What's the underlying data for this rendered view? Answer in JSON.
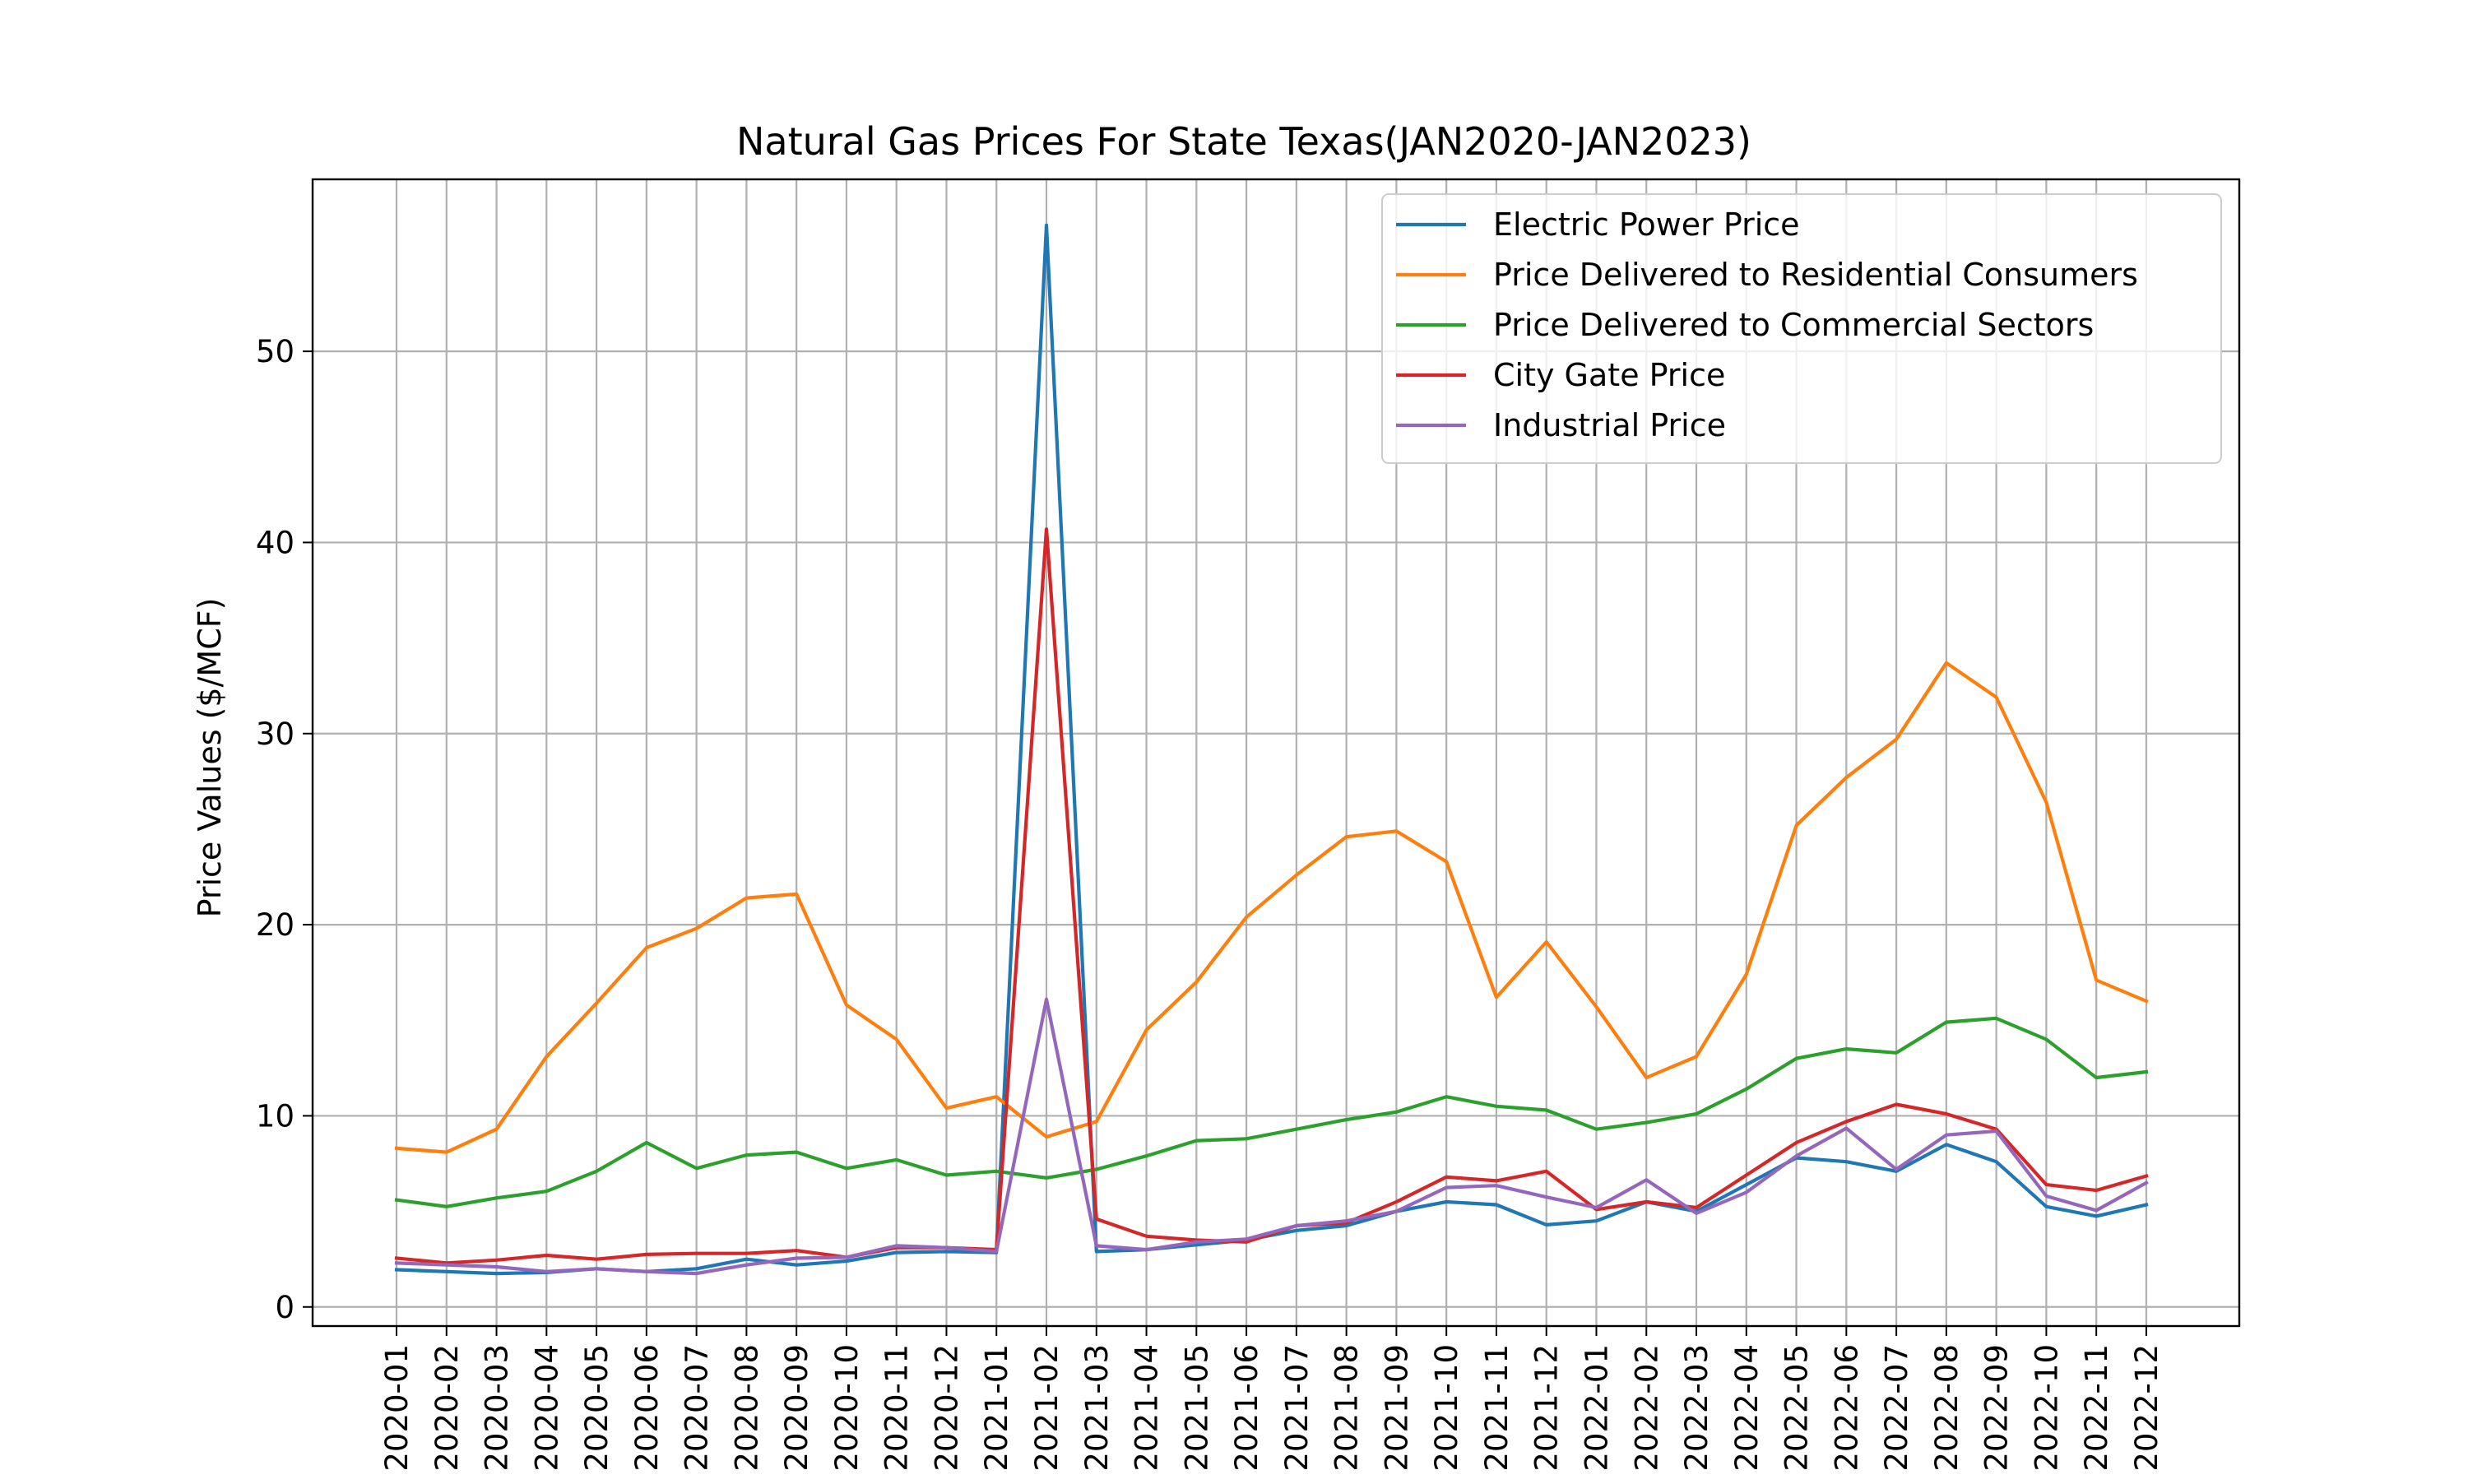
{
  "chart_data": {
    "type": "line",
    "title": "Natural Gas Prices For State Texas(JAN2020-JAN2023)",
    "xlabel": "",
    "ylabel": "Price Values ($/MCF)",
    "ylim": [
      -1,
      59
    ],
    "yticks": [
      0,
      10,
      20,
      30,
      40,
      50
    ],
    "grid": true,
    "legend_position": "top-right",
    "x": [
      "2020-01",
      "2020-02",
      "2020-03",
      "2020-04",
      "2020-05",
      "2020-06",
      "2020-07",
      "2020-08",
      "2020-09",
      "2020-10",
      "2020-11",
      "2020-12",
      "2021-01",
      "2021-02",
      "2021-03",
      "2021-04",
      "2021-05",
      "2021-06",
      "2021-07",
      "2021-08",
      "2021-09",
      "2021-10",
      "2021-11",
      "2021-12",
      "2022-01",
      "2022-02",
      "2022-03",
      "2022-04",
      "2022-05",
      "2022-06",
      "2022-07",
      "2022-08",
      "2022-09",
      "2022-10",
      "2022-11",
      "2022-12"
    ],
    "series": [
      {
        "name": "Electric Power Price",
        "color": "#1f77b4",
        "values": [
          1.95,
          1.85,
          1.75,
          1.8,
          2.0,
          1.85,
          2.0,
          2.5,
          2.2,
          2.4,
          2.85,
          2.9,
          2.85,
          56.6,
          2.9,
          3.0,
          3.25,
          3.5,
          4.0,
          4.25,
          5.0,
          5.5,
          5.35,
          4.3,
          4.5,
          5.5,
          5.0,
          6.4,
          7.8,
          7.6,
          7.1,
          8.5,
          7.6,
          5.25,
          4.75,
          5.35
        ]
      },
      {
        "name": "Price Delivered to Residential Consumers",
        "color": "#ff7f0e",
        "values": [
          8.3,
          8.1,
          9.3,
          13.1,
          15.9,
          18.8,
          19.8,
          21.4,
          21.6,
          15.8,
          14.0,
          10.4,
          11.0,
          8.9,
          9.7,
          14.5,
          17.0,
          20.4,
          22.6,
          24.6,
          24.9,
          23.3,
          16.2,
          19.1,
          15.7,
          12.0,
          13.1,
          17.4,
          25.2,
          27.7,
          29.7,
          33.7,
          31.9,
          26.4,
          17.1,
          16.0
        ]
      },
      {
        "name": "Price Delivered to Commercial Sectors",
        "color": "#2ca02c",
        "values": [
          5.6,
          5.25,
          5.7,
          6.05,
          7.1,
          8.6,
          7.25,
          7.95,
          8.1,
          7.25,
          7.7,
          6.9,
          7.1,
          6.75,
          7.2,
          7.9,
          8.7,
          8.8,
          9.3,
          9.8,
          10.2,
          11.0,
          10.5,
          10.3,
          9.3,
          9.65,
          10.1,
          11.4,
          13.0,
          13.5,
          13.3,
          14.9,
          15.1,
          14.0,
          12.0,
          12.3
        ]
      },
      {
        "name": "City Gate Price",
        "color": "#d62728",
        "values": [
          2.55,
          2.3,
          2.45,
          2.7,
          2.5,
          2.75,
          2.8,
          2.8,
          2.95,
          2.6,
          3.1,
          3.1,
          3.0,
          40.7,
          4.6,
          3.7,
          3.5,
          3.4,
          4.25,
          4.4,
          5.5,
          6.8,
          6.6,
          7.1,
          5.1,
          5.5,
          5.2,
          6.9,
          8.6,
          9.7,
          10.6,
          10.1,
          9.3,
          6.4,
          6.1,
          6.85
        ]
      },
      {
        "name": "Industrial Price",
        "color": "#9467bd",
        "values": [
          2.3,
          2.2,
          2.1,
          1.85,
          2.0,
          1.85,
          1.75,
          2.2,
          2.55,
          2.6,
          3.2,
          3.1,
          2.9,
          16.1,
          3.2,
          3.0,
          3.4,
          3.55,
          4.25,
          4.5,
          5.0,
          6.25,
          6.35,
          5.75,
          5.2,
          6.65,
          4.9,
          6.0,
          7.9,
          9.35,
          7.2,
          9.0,
          9.2,
          5.8,
          5.05,
          6.5
        ]
      }
    ]
  }
}
